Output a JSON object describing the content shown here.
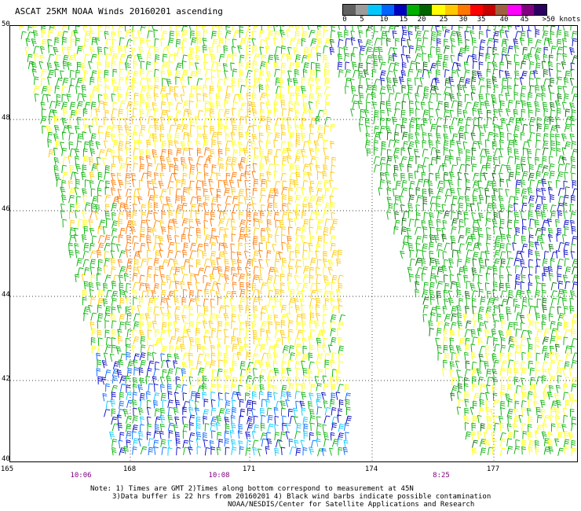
{
  "title": "ASCAT 25KM NOAA Winds 20160201 ascending",
  "legend": {
    "colors": [
      "#606060",
      "#9c9c9c",
      "#00c8ff",
      "#0064ff",
      "#0000c0",
      "#00b000",
      "#006400",
      "#ffff00",
      "#ffc800",
      "#ff7800",
      "#ff0000",
      "#c80000",
      "#a06040",
      "#ff00ff",
      "#800080",
      "#2c0060"
    ],
    "labels": [
      "0",
      "5",
      "10",
      "15",
      "20",
      "25",
      "30",
      "35",
      "40",
      "45",
      ">50 knots"
    ]
  },
  "lat_labels": [
    "50",
    "48",
    "46",
    "44",
    "42",
    "40"
  ],
  "lon_labels": [
    "165",
    "168",
    "171",
    "174",
    "177"
  ],
  "time_labels": [
    "10:06",
    "10:08",
    "8:25"
  ],
  "note": {
    "line1": "Note: 1) Times are GMT 2)Times along bottom correspond to measurement at 45N",
    "line2": "3)Data buffer is 22 hrs from 20160201 4) Black wind barbs indicate possible contamination",
    "line3": "NOAA/NESDIS/Center for Satellite Applications and Research"
  }
}
